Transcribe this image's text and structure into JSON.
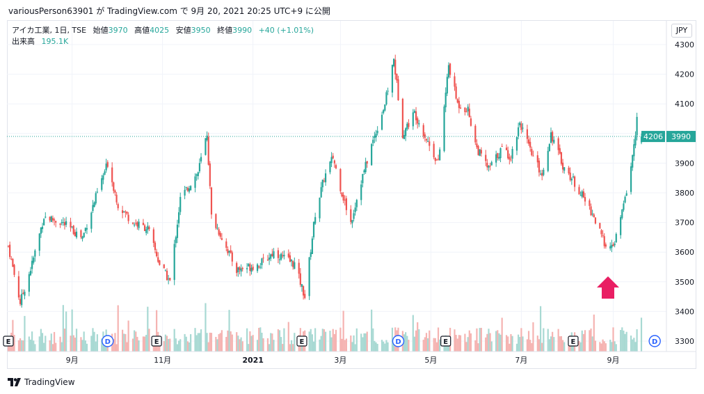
{
  "header": {
    "attribution": "variousPerson63901 が TradingView.com で 9月 20, 2021 20:25 UTC+9 に公開"
  },
  "legend": {
    "symbol": "アイカ工業, 1日, TSE",
    "open_label": "始値",
    "open": "3970",
    "high_label": "高値",
    "high": "4025",
    "low_label": "安値",
    "low": "3950",
    "close_label": "終値",
    "close": "3990",
    "change": "+40 (+1.01%)",
    "volume_label": "出来高",
    "volume": "195.1K"
  },
  "currency_button": "JPY",
  "footer": {
    "brand": "TradingView"
  },
  "chart_data": {
    "type": "candlestick",
    "y_ticks": [
      "4300",
      "4200",
      "4100",
      "4000",
      "3900",
      "3800",
      "3700",
      "3600",
      "3500",
      "3400",
      "3300"
    ],
    "ylim": [
      3270,
      4320
    ],
    "x_ticks": [
      {
        "label": "9月",
        "bold": false
      },
      {
        "label": "11月",
        "bold": false
      },
      {
        "label": "2021",
        "bold": true
      },
      {
        "label": "3月",
        "bold": false
      },
      {
        "label": "5月",
        "bold": false
      },
      {
        "label": "7月",
        "bold": false
      },
      {
        "label": "9月",
        "bold": false
      }
    ],
    "price_labels": {
      "high_marker": "4206",
      "last": "3990"
    },
    "markers": [
      "E",
      "D",
      "E",
      "E",
      "D",
      "E",
      "E",
      "D"
    ],
    "colors": {
      "up": "#26a69a",
      "down": "#ef5350",
      "up_volume": "#a8d9d3",
      "down_volume": "#f5b3b1",
      "arrow": "#e91e63"
    },
    "approx_close_path": [
      [
        "2020-07-20",
        3620
      ],
      [
        "2020-07-28",
        3430
      ],
      [
        "2020-08-05",
        3560
      ],
      [
        "2020-08-13",
        3720
      ],
      [
        "2020-08-25",
        3700
      ],
      [
        "2020-09-08",
        3650
      ],
      [
        "2020-09-18",
        3800
      ],
      [
        "2020-09-25",
        3900
      ],
      [
        "2020-10-02",
        3760
      ],
      [
        "2020-10-12",
        3700
      ],
      [
        "2020-10-22",
        3680
      ],
      [
        "2020-10-30",
        3560
      ],
      [
        "2020-11-06",
        3500
      ],
      [
        "2020-11-13",
        3780
      ],
      [
        "2020-11-25",
        3870
      ],
      [
        "2020-12-01",
        4000
      ],
      [
        "2020-12-04",
        3720
      ],
      [
        "2020-12-11",
        3650
      ],
      [
        "2020-12-21",
        3540
      ],
      [
        "2021-01-06",
        3560
      ],
      [
        "2021-01-15",
        3600
      ],
      [
        "2021-01-29",
        3560
      ],
      [
        "2021-02-05",
        3450
      ],
      [
        "2021-02-12",
        3730
      ],
      [
        "2021-02-18",
        3850
      ],
      [
        "2021-02-24",
        3920
      ],
      [
        "2021-03-02",
        3800
      ],
      [
        "2021-03-08",
        3700
      ],
      [
        "2021-03-15",
        3840
      ],
      [
        "2021-03-22",
        3960
      ],
      [
        "2021-03-31",
        4100
      ],
      [
        "2021-04-06",
        4250
      ],
      [
        "2021-04-12",
        4000
      ],
      [
        "2021-04-20",
        4070
      ],
      [
        "2021-04-30",
        3960
      ],
      [
        "2021-05-06",
        3900
      ],
      [
        "2021-05-13",
        4230
      ],
      [
        "2021-05-19",
        4100
      ],
      [
        "2021-05-26",
        4080
      ],
      [
        "2021-06-01",
        3950
      ],
      [
        "2021-06-09",
        3880
      ],
      [
        "2021-06-18",
        3950
      ],
      [
        "2021-06-24",
        3920
      ],
      [
        "2021-06-30",
        4040
      ],
      [
        "2021-07-07",
        3940
      ],
      [
        "2021-07-15",
        3860
      ],
      [
        "2021-07-21",
        4000
      ],
      [
        "2021-07-30",
        3880
      ],
      [
        "2021-08-04",
        3850
      ],
      [
        "2021-08-10",
        3800
      ],
      [
        "2021-08-18",
        3730
      ],
      [
        "2021-08-25",
        3640
      ],
      [
        "2021-08-31",
        3610
      ],
      [
        "2021-09-03",
        3650
      ],
      [
        "2021-09-09",
        3780
      ],
      [
        "2021-09-14",
        3920
      ],
      [
        "2021-09-17",
        4050
      ],
      [
        "2021-09-20",
        3990
      ]
    ]
  }
}
